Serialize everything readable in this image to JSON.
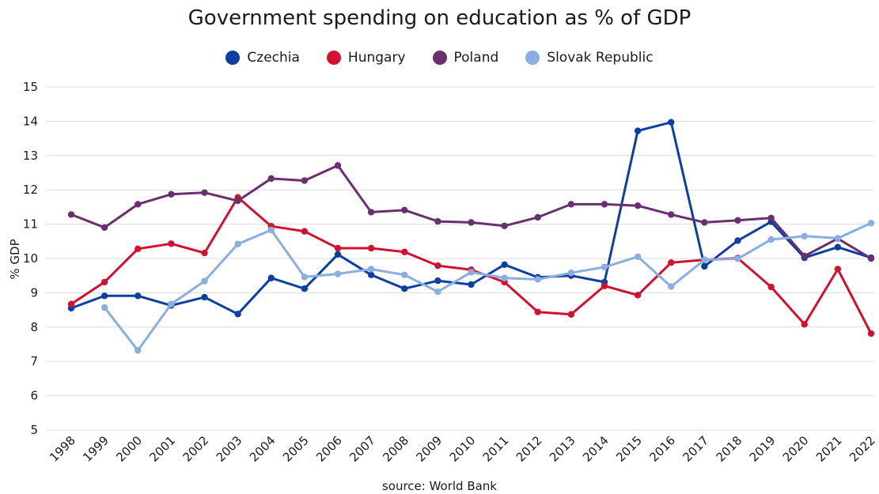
{
  "chart_data": {
    "type": "line",
    "title": "Government spending on education as % of GDP",
    "ylabel": "% GDP",
    "xlabel": "",
    "source": "source: World Bank",
    "ylim": [
      5,
      15
    ],
    "yticks": [
      5,
      6,
      7,
      8,
      9,
      10,
      11,
      12,
      13,
      14,
      15
    ],
    "grid": true,
    "legend_position": "top-center",
    "categories": [
      "1998",
      "1999",
      "2000",
      "2001",
      "2002",
      "2003",
      "2004",
      "2005",
      "2006",
      "2007",
      "2008",
      "2009",
      "2010",
      "2011",
      "2012",
      "2013",
      "2014",
      "2015",
      "2016",
      "2017",
      "2018",
      "2019",
      "2020",
      "2021",
      "2022"
    ],
    "series": [
      {
        "name": "Czechia",
        "color": "#0b3fa3",
        "values": [
          8.55,
          8.91,
          8.91,
          8.63,
          8.87,
          8.38,
          9.43,
          9.12,
          10.12,
          9.52,
          9.12,
          9.35,
          9.24,
          9.82,
          9.45,
          9.5,
          9.31,
          13.72,
          13.97,
          9.77,
          10.52,
          11.07,
          10.02,
          10.33,
          10.02
        ]
      },
      {
        "name": "Hungary",
        "color": "#d3112e",
        "values": [
          8.67,
          9.31,
          10.28,
          10.43,
          10.16,
          11.78,
          10.94,
          10.79,
          10.3,
          10.3,
          10.19,
          9.79,
          9.67,
          9.31,
          8.44,
          8.37,
          9.2,
          8.93,
          9.88,
          9.96,
          10.01,
          9.17,
          8.08,
          9.69,
          7.81
        ]
      },
      {
        "name": "Poland",
        "color": "#6a2f6e",
        "values": [
          11.28,
          10.9,
          11.58,
          11.87,
          11.92,
          11.68,
          12.33,
          12.27,
          12.71,
          11.35,
          11.41,
          11.08,
          11.05,
          10.95,
          11.2,
          11.58,
          11.58,
          11.54,
          11.28,
          11.05,
          11.11,
          11.18,
          10.07,
          10.58,
          10.0
        ]
      },
      {
        "name": "Slovak Republic",
        "color": "#8aaee0",
        "values": [
          null,
          8.57,
          7.32,
          8.67,
          9.34,
          10.42,
          10.83,
          9.46,
          9.55,
          9.69,
          9.52,
          9.03,
          9.6,
          9.43,
          9.39,
          9.58,
          9.75,
          10.05,
          9.18,
          9.96,
          9.99,
          10.55,
          10.65,
          10.59,
          11.03
        ]
      }
    ]
  }
}
